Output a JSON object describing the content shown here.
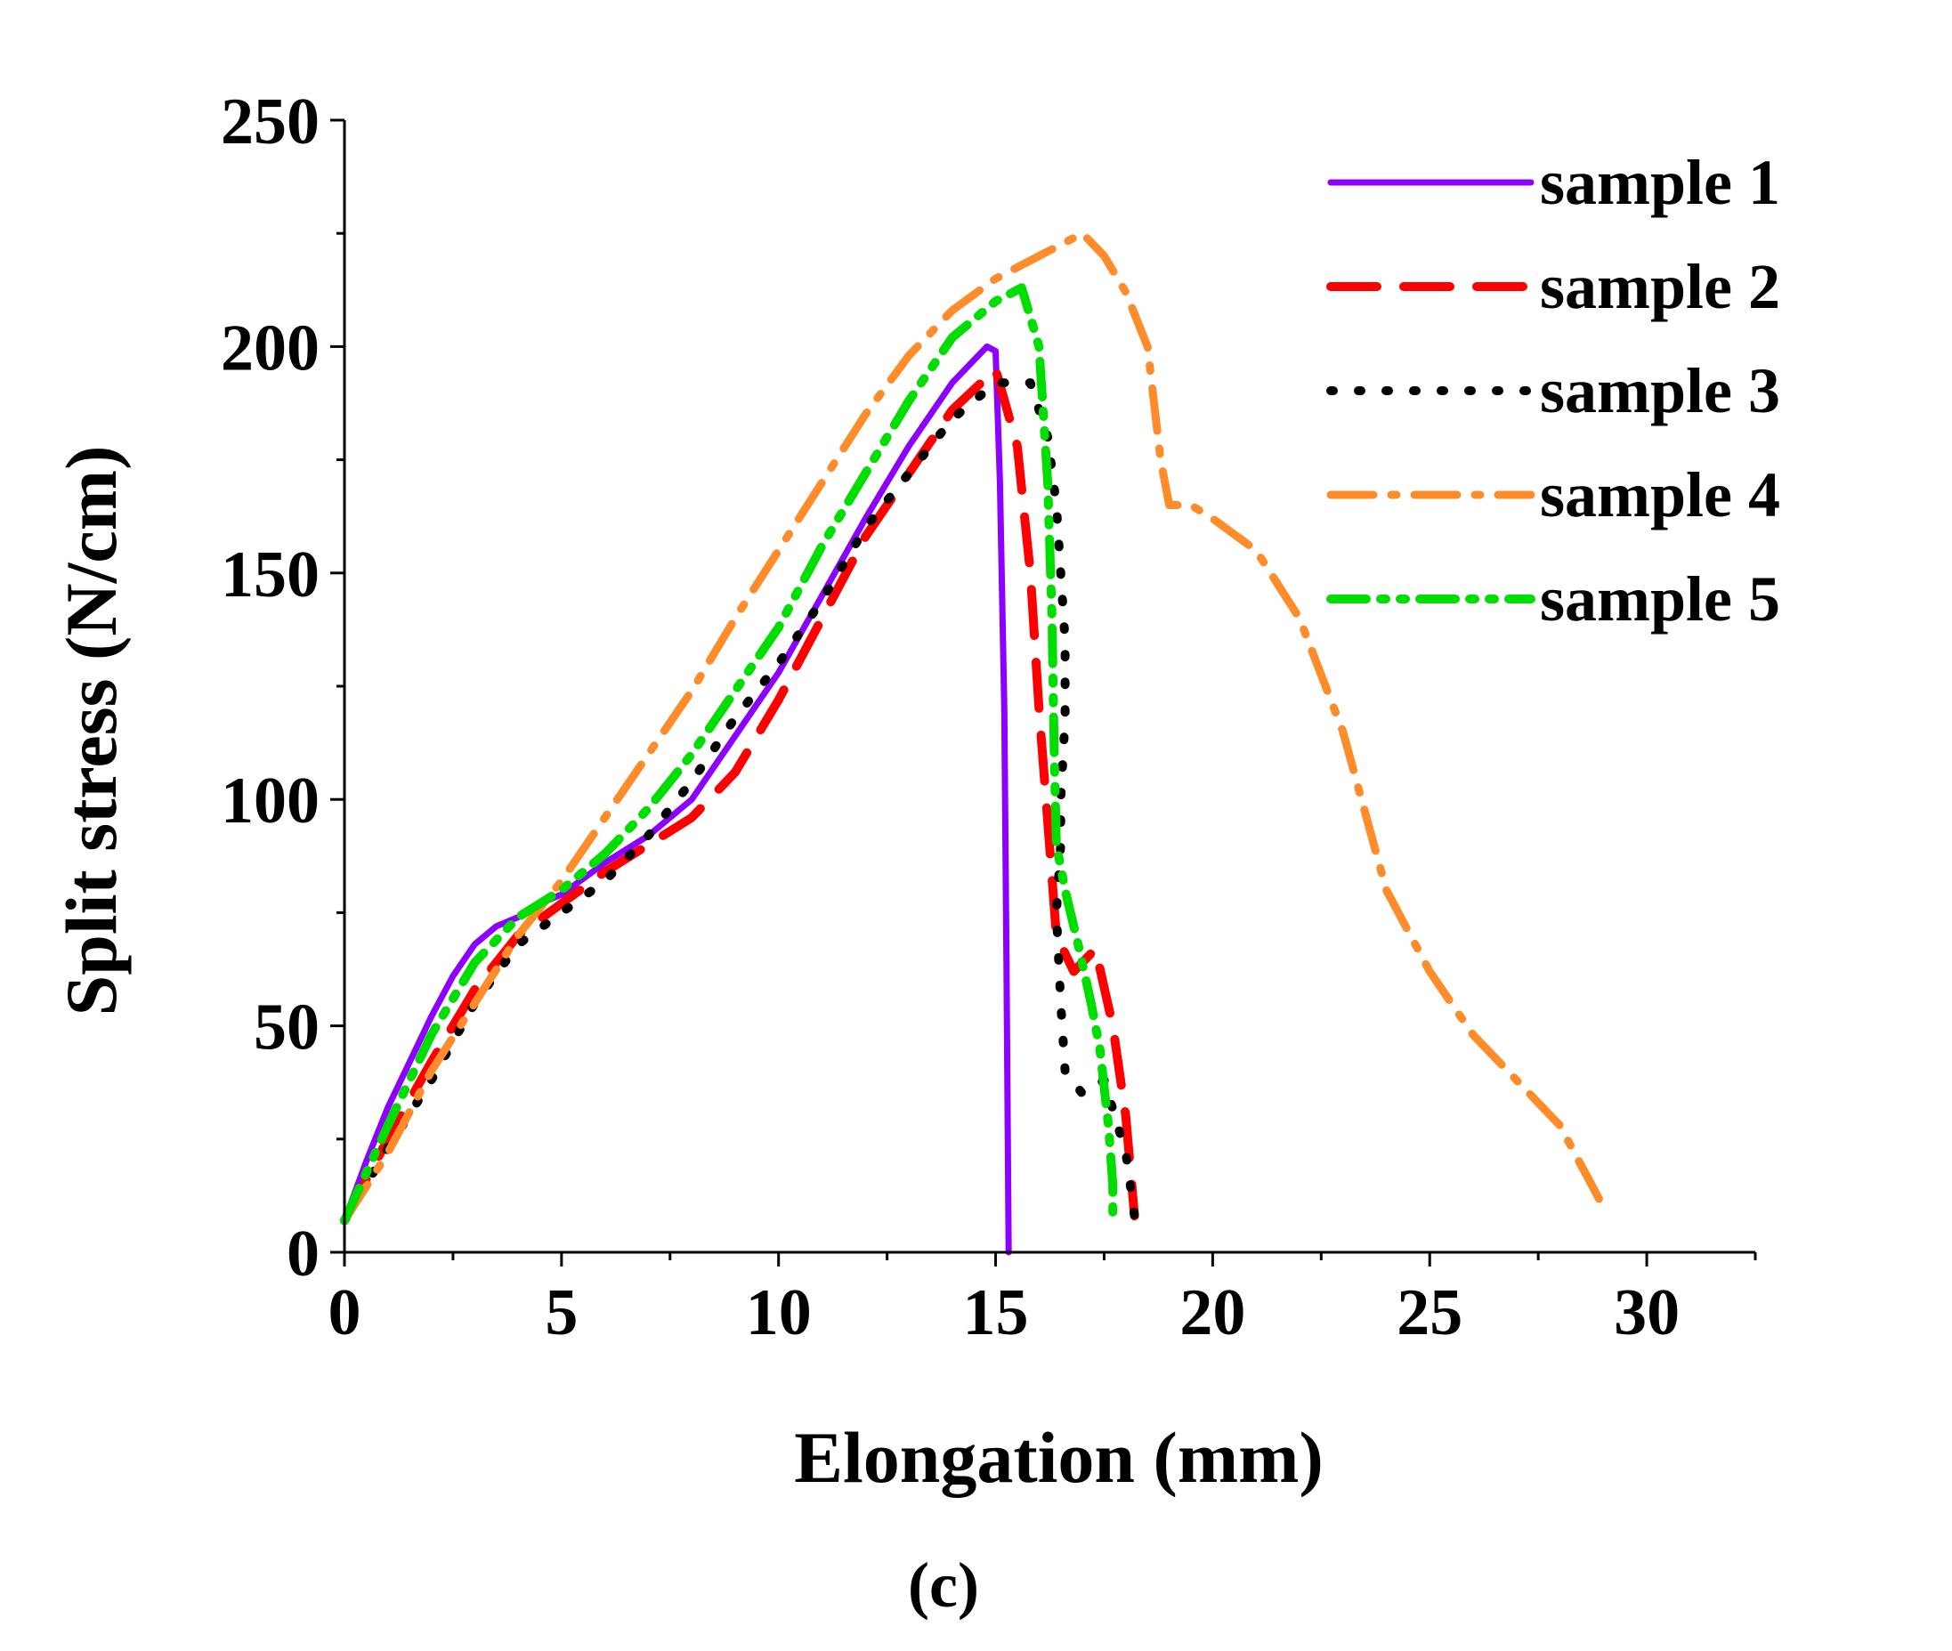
{
  "chart_data": {
    "type": "line",
    "title": "",
    "xlabel": "Elongation (mm)",
    "ylabel": "Split stress (N/cm)",
    "xlim": [
      0,
      32.5
    ],
    "ylim": [
      0,
      250
    ],
    "xticks": [
      0,
      5,
      10,
      15,
      20,
      25,
      30
    ],
    "yticks": [
      0,
      50,
      100,
      150,
      200,
      250
    ],
    "grid": false,
    "legend_position": "top-right",
    "caption": "(c)",
    "series": [
      {
        "name": "sample 1",
        "color": "#8B00FF",
        "style": "solid",
        "x": [
          0,
          0.5,
          1,
          1.5,
          2,
          2.5,
          3,
          3.5,
          4,
          4.5,
          5,
          6,
          7,
          8,
          9,
          10,
          11,
          12,
          13,
          14,
          14.8,
          15.0,
          15.1,
          15.2,
          15.25,
          15.3
        ],
        "y": [
          7,
          20,
          32,
          42,
          52,
          61,
          68,
          72,
          74,
          77,
          79,
          86,
          92,
          100,
          114,
          128,
          145,
          162,
          178,
          192,
          200,
          199,
          170,
          120,
          65,
          0
        ]
      },
      {
        "name": "sample 2",
        "color": "#FF0000",
        "style": "dashed",
        "x": [
          0,
          1,
          2,
          3,
          4,
          5,
          6,
          7,
          8,
          9,
          10,
          11,
          12,
          13,
          14,
          15,
          15.5,
          15.8,
          16.0,
          16.2,
          16.4,
          16.8,
          17.3,
          17.7,
          18.0,
          18.2
        ],
        "y": [
          7,
          25,
          42,
          58,
          70,
          77,
          84,
          90,
          96,
          106,
          122,
          140,
          158,
          172,
          186,
          195,
          178,
          150,
          120,
          95,
          70,
          62,
          67,
          50,
          30,
          8
        ]
      },
      {
        "name": "sample 3",
        "color": "#000000",
        "style": "dotted",
        "x": [
          0,
          1,
          2,
          3,
          4,
          5,
          6,
          7,
          8,
          9,
          10,
          11,
          12,
          13,
          14,
          15,
          15.8,
          16.2,
          16.4,
          16.5,
          16.6,
          16.6,
          16.5,
          16.5,
          16.4,
          16.5,
          16.6,
          17.0,
          17.5,
          18.0,
          18.2
        ],
        "y": [
          7,
          23,
          38,
          55,
          68,
          75,
          82,
          92,
          104,
          118,
          130,
          144,
          160,
          172,
          184,
          192,
          192,
          180,
          165,
          150,
          135,
          118,
          100,
          90,
          75,
          55,
          40,
          35,
          38,
          22,
          8
        ]
      },
      {
        "name": "sample 4",
        "color": "#FF8C2A",
        "style": "dashdot",
        "x": [
          0,
          1,
          2,
          3,
          4,
          5,
          6,
          7,
          8,
          9,
          10,
          11,
          12,
          13,
          14,
          15,
          16,
          17,
          17.5,
          18,
          18.5,
          18.8,
          19,
          19.5,
          20,
          21,
          22,
          23,
          24,
          25,
          26,
          27,
          28,
          29
        ],
        "y": [
          7,
          22,
          40,
          55,
          70,
          82,
          96,
          110,
          124,
          140,
          155,
          170,
          185,
          198,
          208,
          215,
          220,
          225,
          220,
          212,
          200,
          175,
          165,
          165,
          162,
          155,
          140,
          115,
          80,
          62,
          48,
          38,
          28,
          10
        ]
      },
      {
        "name": "sample 5",
        "color": "#00DD00",
        "style": "dashdotdot",
        "x": [
          0,
          1,
          2,
          3,
          4,
          5,
          6,
          7,
          8,
          9,
          10,
          11,
          12,
          13,
          14,
          15,
          15.6,
          16.0,
          16.2,
          16.3,
          16.35,
          16.4,
          16.6,
          16.9,
          17.2,
          17.4,
          17.6,
          17.7,
          17.7
        ],
        "y": [
          7,
          28,
          48,
          64,
          74,
          80,
          88,
          98,
          110,
          124,
          138,
          156,
          172,
          188,
          202,
          210,
          213,
          200,
          170,
          140,
          110,
          90,
          80,
          68,
          55,
          45,
          28,
          15,
          7
        ]
      }
    ]
  }
}
